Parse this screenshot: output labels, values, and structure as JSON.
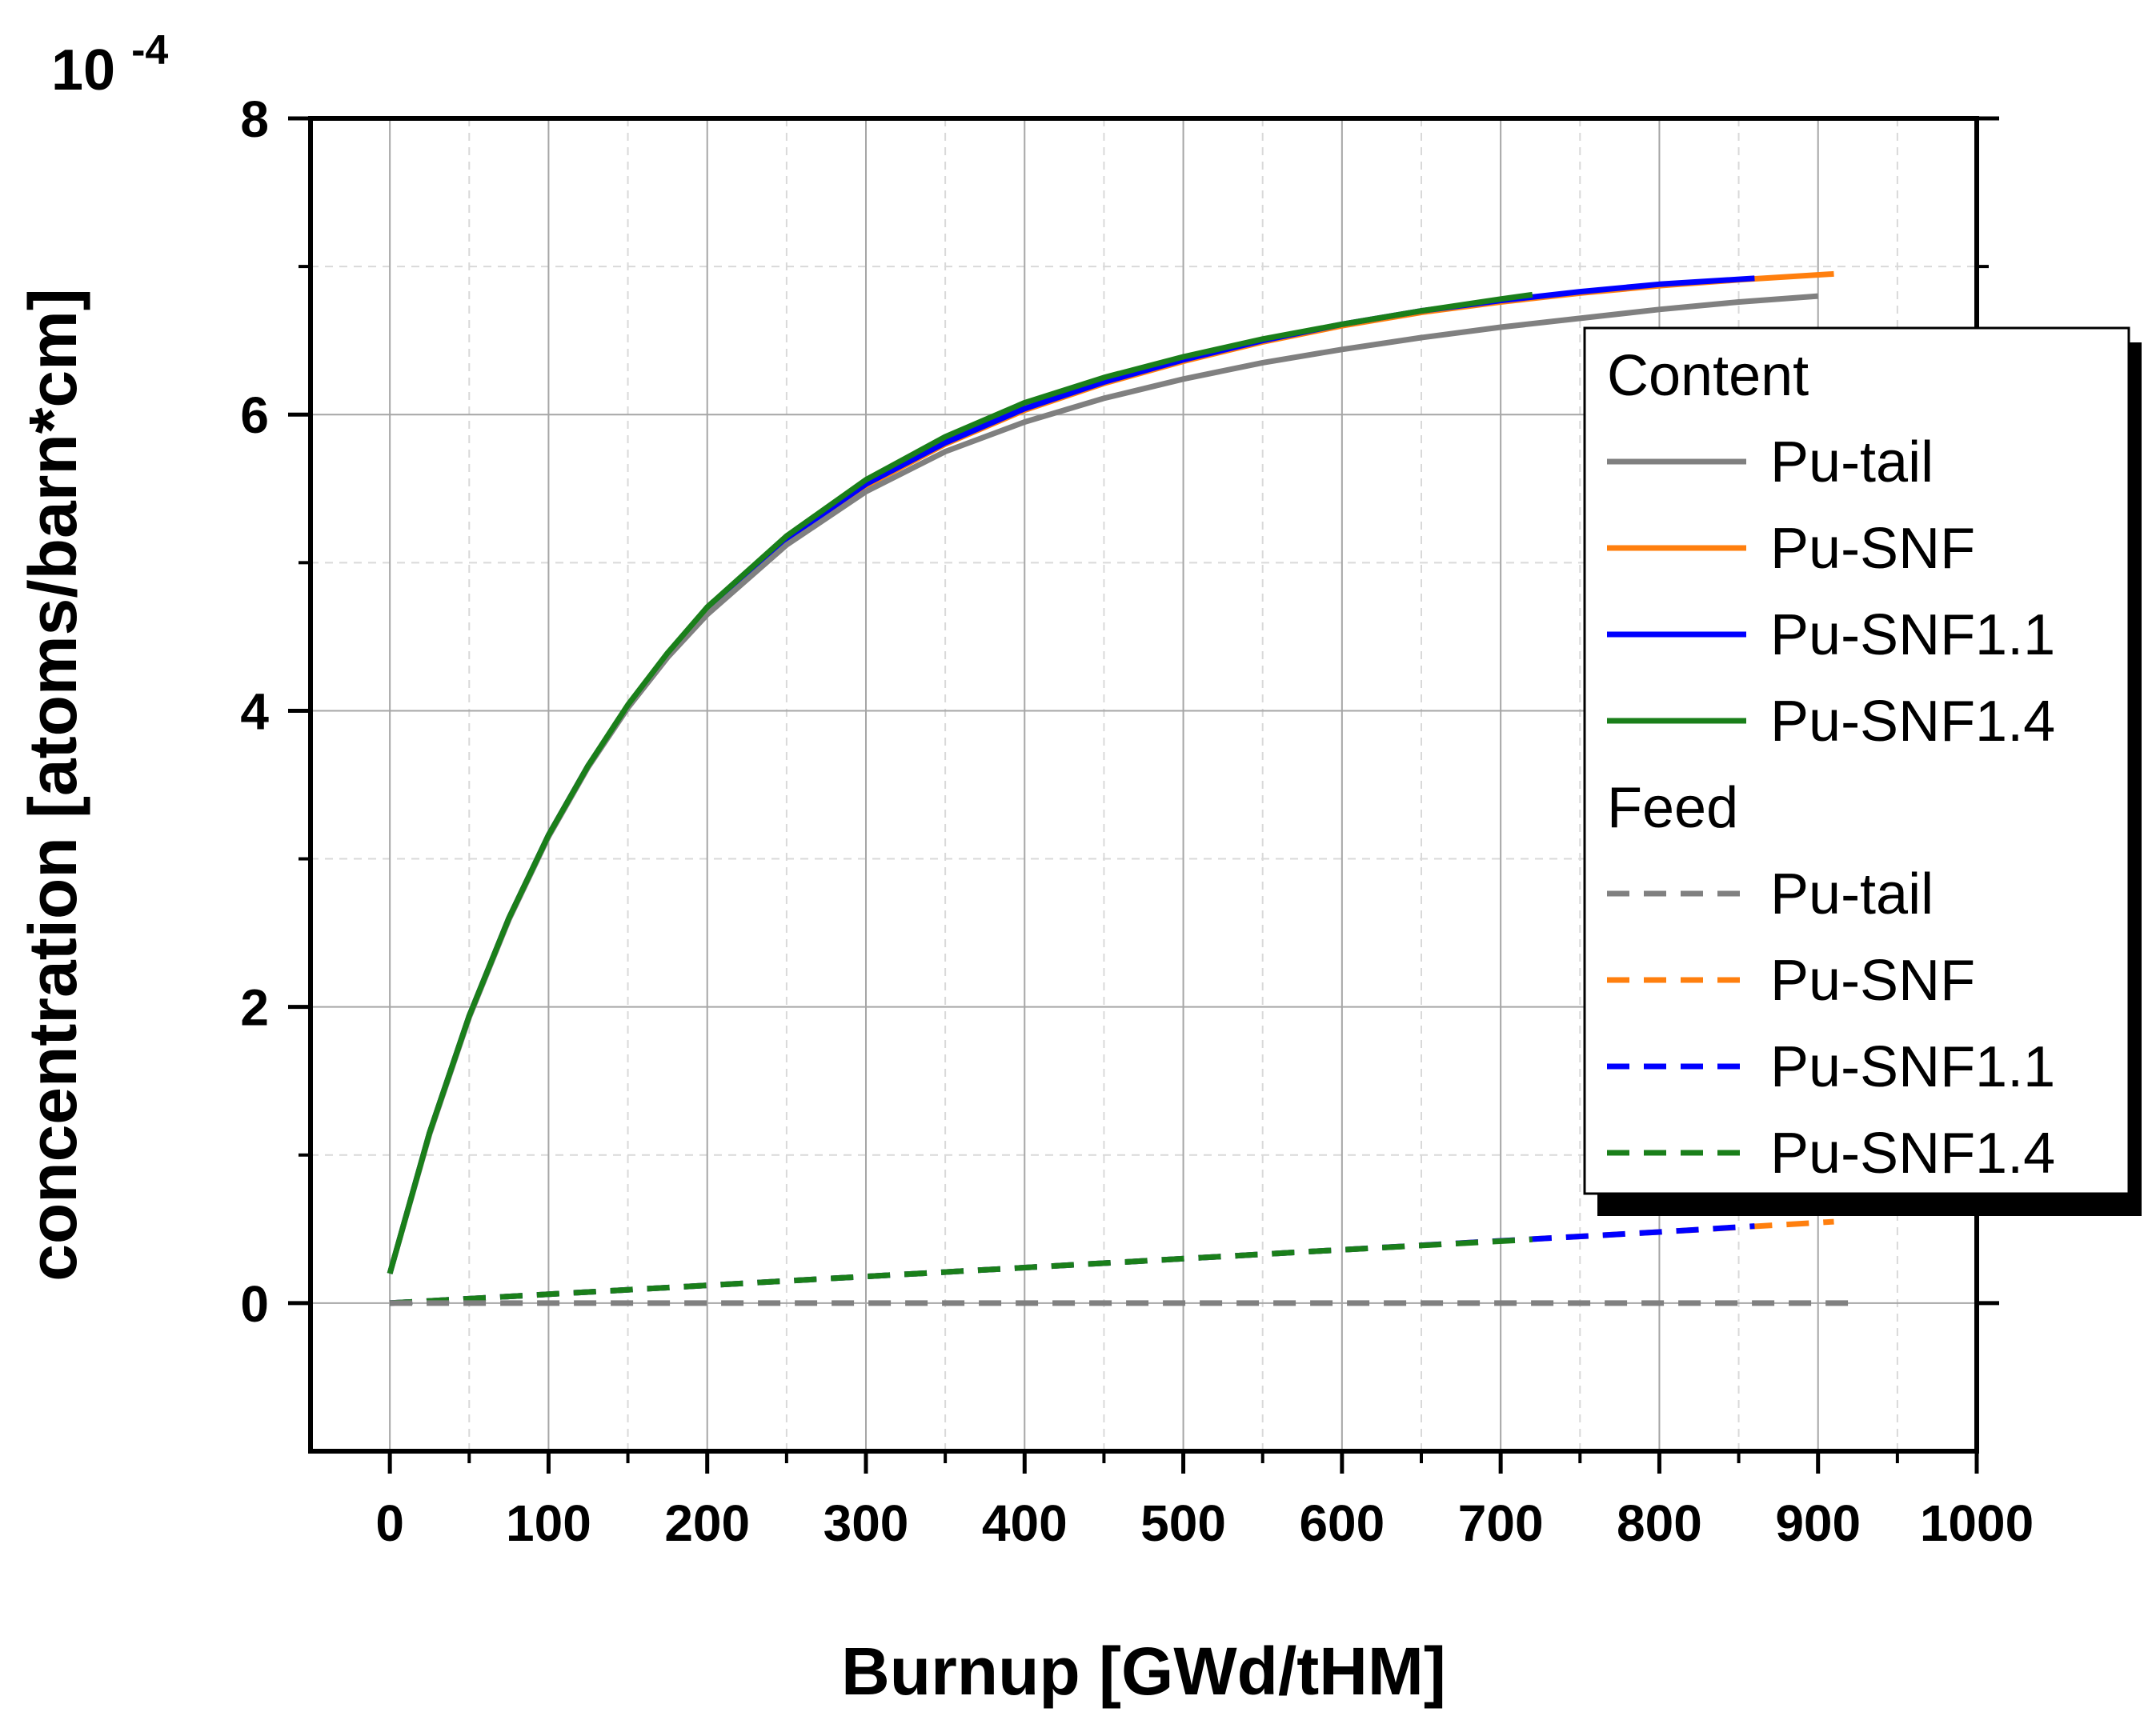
{
  "chart_data": {
    "type": "line",
    "title": "",
    "xlabel": "Burnup [GWd/tHM]",
    "ylabel": "concentration [atoms/barn*cm]",
    "y_multiplier_label": {
      "base": "10",
      "exponent": "-4"
    },
    "xlim": [
      -50,
      1000
    ],
    "ylim": [
      -1,
      8
    ],
    "x_ticks": [
      0,
      100,
      200,
      300,
      400,
      500,
      600,
      700,
      800,
      900,
      1000
    ],
    "x_tick_labels": [
      "0",
      "100",
      "200",
      "300",
      "400",
      "500",
      "600",
      "700",
      "800",
      "900",
      "1000"
    ],
    "y_ticks": [
      0,
      2,
      4,
      6,
      8
    ],
    "y_tick_labels": [
      "0",
      "2",
      "4",
      "6",
      "8"
    ],
    "grid": true,
    "legend_position": "right",
    "legend": {
      "groups": [
        {
          "title": "Content",
          "entries": [
            {
              "label": "Pu-tail",
              "color": "#808080",
              "style": "solid"
            },
            {
              "label": "Pu-SNF",
              "color": "#ff7f0e",
              "style": "solid"
            },
            {
              "label": "Pu-SNF1.1",
              "color": "#0000ff",
              "style": "solid"
            },
            {
              "label": "Pu-SNF1.4",
              "color": "#1a7f1a",
              "style": "solid"
            }
          ]
        },
        {
          "title": "Feed",
          "entries": [
            {
              "label": "Pu-tail",
              "color": "#808080",
              "style": "dashed"
            },
            {
              "label": "Pu-SNF",
              "color": "#ff7f0e",
              "style": "dashed"
            },
            {
              "label": "Pu-SNF1.1",
              "color": "#0000ff",
              "style": "dashed"
            },
            {
              "label": "Pu-SNF1.4",
              "color": "#1a7f1a",
              "style": "dashed"
            }
          ]
        }
      ]
    },
    "series": [
      {
        "name": "Pu-tail",
        "group": "Content",
        "color": "#808080",
        "style": "solid",
        "x": [
          0,
          25,
          50,
          75,
          100,
          125,
          150,
          175,
          200,
          250,
          300,
          350,
          400,
          450,
          500,
          550,
          600,
          650,
          700,
          750,
          800,
          850,
          900
        ],
        "y": [
          0.2,
          1.14,
          1.93,
          2.59,
          3.15,
          3.62,
          4.02,
          4.36,
          4.65,
          5.12,
          5.48,
          5.75,
          5.95,
          6.11,
          6.24,
          6.35,
          6.44,
          6.52,
          6.59,
          6.65,
          6.71,
          6.76,
          6.8
        ]
      },
      {
        "name": "Pu-SNF",
        "group": "Content",
        "color": "#ff7f0e",
        "style": "solid",
        "x": [
          0,
          25,
          50,
          75,
          100,
          125,
          150,
          175,
          200,
          250,
          300,
          350,
          400,
          450,
          500,
          550,
          600,
          650,
          700,
          750,
          800,
          850,
          910
        ],
        "y": [
          0.2,
          1.15,
          1.94,
          2.6,
          3.16,
          3.63,
          4.03,
          4.38,
          4.68,
          5.16,
          5.52,
          5.8,
          6.03,
          6.21,
          6.36,
          6.49,
          6.6,
          6.69,
          6.76,
          6.82,
          6.87,
          6.91,
          6.95
        ]
      },
      {
        "name": "Pu-SNF1.1",
        "group": "Content",
        "color": "#0000ff",
        "style": "solid",
        "x": [
          0,
          25,
          50,
          75,
          100,
          125,
          150,
          175,
          200,
          250,
          300,
          350,
          400,
          450,
          500,
          550,
          600,
          650,
          700,
          750,
          800,
          860
        ],
        "y": [
          0.2,
          1.15,
          1.94,
          2.6,
          3.16,
          3.63,
          4.03,
          4.38,
          4.68,
          5.16,
          5.53,
          5.81,
          6.04,
          6.22,
          6.37,
          6.5,
          6.61,
          6.7,
          6.77,
          6.83,
          6.88,
          6.92
        ]
      },
      {
        "name": "Pu-SNF1.4",
        "group": "Content",
        "color": "#1a7f1a",
        "style": "solid",
        "x": [
          0,
          25,
          50,
          75,
          100,
          125,
          150,
          175,
          200,
          250,
          300,
          350,
          400,
          450,
          500,
          550,
          600,
          650,
          700,
          720
        ],
        "y": [
          0.2,
          1.15,
          1.94,
          2.6,
          3.16,
          3.63,
          4.04,
          4.39,
          4.7,
          5.18,
          5.56,
          5.85,
          6.08,
          6.25,
          6.39,
          6.51,
          6.61,
          6.7,
          6.78,
          6.81
        ]
      },
      {
        "name": "Pu-tail",
        "group": "Feed",
        "color": "#808080",
        "style": "dashed",
        "x": [
          0,
          920
        ],
        "y": [
          0.0,
          0.0
        ]
      },
      {
        "name": "Pu-SNF",
        "group": "Feed",
        "color": "#ff7f0e",
        "style": "dashed",
        "x": [
          0,
          200,
          400,
          600,
          800,
          910
        ],
        "y": [
          0.0,
          0.12,
          0.24,
          0.36,
          0.48,
          0.55
        ]
      },
      {
        "name": "Pu-SNF1.1",
        "group": "Feed",
        "color": "#0000ff",
        "style": "dashed",
        "x": [
          0,
          200,
          400,
          600,
          800,
          860
        ],
        "y": [
          0.0,
          0.12,
          0.24,
          0.36,
          0.48,
          0.52
        ]
      },
      {
        "name": "Pu-SNF1.4",
        "group": "Feed",
        "color": "#1a7f1a",
        "style": "dashed",
        "x": [
          0,
          200,
          400,
          600,
          720
        ],
        "y": [
          0.0,
          0.12,
          0.24,
          0.36,
          0.43
        ]
      }
    ]
  }
}
